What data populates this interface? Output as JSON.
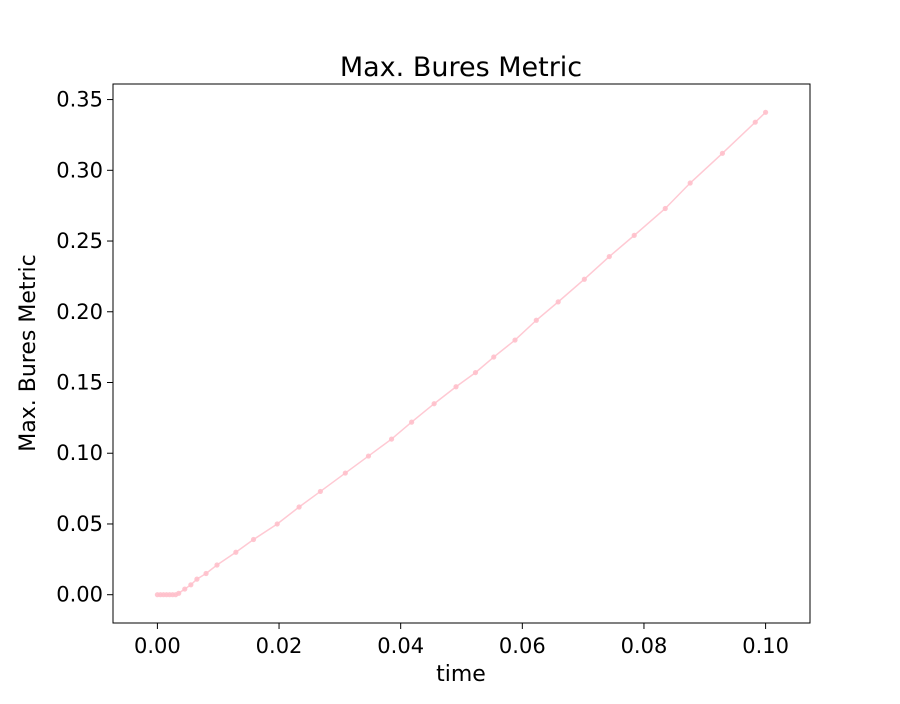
{
  "chart_data": {
    "type": "line",
    "title": "Max. Bures Metric",
    "xlabel": "time",
    "ylabel": "Max. Bures Metric",
    "xlim": [
      -0.0073,
      0.1073
    ],
    "ylim": [
      -0.02,
      0.361
    ],
    "x_ticks": [
      0.0,
      0.02,
      0.04,
      0.06,
      0.08,
      0.1
    ],
    "x_tick_labels": [
      "0.00",
      "0.02",
      "0.04",
      "0.06",
      "0.08",
      "0.10"
    ],
    "y_ticks": [
      0.0,
      0.05,
      0.1,
      0.15,
      0.2,
      0.25,
      0.3,
      0.35
    ],
    "y_tick_labels": [
      "0.00",
      "0.05",
      "0.10",
      "0.15",
      "0.20",
      "0.25",
      "0.30",
      "0.35"
    ],
    "grid": false,
    "legend": "none",
    "series": [
      {
        "color": "#ffc0cb",
        "marker": "circle",
        "x": [
          0.0,
          0.0005,
          0.001,
          0.0015,
          0.002,
          0.0025,
          0.003,
          0.0035,
          0.0045,
          0.0055,
          0.0065,
          0.008,
          0.0098,
          0.0129,
          0.0158,
          0.0197,
          0.0233,
          0.0268,
          0.0309,
          0.0347,
          0.0385,
          0.0418,
          0.0455,
          0.0491,
          0.0523,
          0.0553,
          0.0588,
          0.0623,
          0.0659,
          0.0702,
          0.0743,
          0.0784,
          0.0835,
          0.0876,
          0.0929,
          0.0983,
          0.1
        ],
        "y": [
          0.0,
          0.0,
          0.0,
          0.0,
          0.0,
          0.0,
          0.0,
          0.001,
          0.004,
          0.007,
          0.011,
          0.015,
          0.021,
          0.03,
          0.039,
          0.05,
          0.062,
          0.073,
          0.086,
          0.098,
          0.11,
          0.122,
          0.135,
          0.147,
          0.157,
          0.168,
          0.18,
          0.194,
          0.207,
          0.223,
          0.239,
          0.254,
          0.273,
          0.291,
          0.312,
          0.334,
          0.341
        ]
      }
    ]
  }
}
